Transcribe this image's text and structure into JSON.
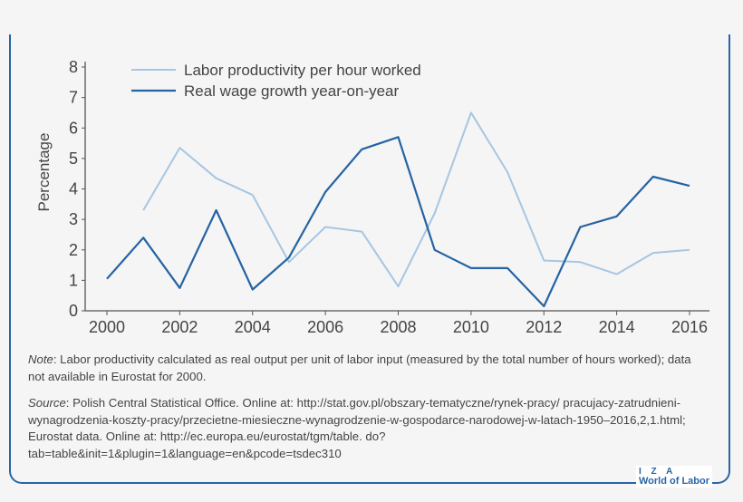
{
  "chart_data": {
    "type": "line",
    "title": "",
    "xlabel": "",
    "ylabel": "Percentage",
    "x": [
      2000,
      2001,
      2002,
      2003,
      2004,
      2005,
      2006,
      2007,
      2008,
      2009,
      2010,
      2011,
      2012,
      2013,
      2014,
      2015,
      2016
    ],
    "xticks": [
      "2000",
      "2002",
      "2004",
      "2006",
      "2008",
      "2010",
      "2012",
      "2014",
      "2016"
    ],
    "yticks": [
      "0",
      "1",
      "2",
      "3",
      "4",
      "5",
      "6",
      "7",
      "8"
    ],
    "xlim": [
      2000,
      2016
    ],
    "ylim": [
      0,
      8
    ],
    "grid": false,
    "legend": "top-left",
    "series": [
      {
        "name": "Labor productivity per hour worked",
        "color": "#a6c6e2",
        "values": [
          null,
          3.3,
          5.35,
          4.35,
          3.8,
          1.6,
          2.75,
          2.6,
          0.8,
          3.2,
          6.5,
          4.55,
          1.65,
          1.6,
          1.2,
          1.9,
          2.0
        ]
      },
      {
        "name": "Real wage growth year-on-year",
        "color": "#2563a3",
        "values": [
          1.05,
          2.4,
          0.75,
          3.3,
          0.7,
          1.75,
          3.9,
          5.3,
          5.7,
          2.0,
          1.4,
          1.4,
          0.15,
          2.75,
          3.1,
          4.4,
          4.1
        ]
      }
    ]
  },
  "note": {
    "label": "Note",
    "text": ": Labor productivity calculated as real output per unit of labor input (measured by the total number of hours worked); data not available in Eurostat for 2000."
  },
  "source": {
    "label": "Source",
    "text": ": Polish Central Statistical Office. Online at: http://stat.gov.pl/obszary-tematyczne/rynek-pracy/ pracujacy-zatrudnieni-wynagrodzenia-koszty-pracy/przecietne-miesieczne-wynagrodzenie-w-gospodarce-narodowej-w-latach-1950–2016,2,1.html; Eurostat data. Online at: http://ec.europa.eu/eurostat/tgm/table. do?tab=table&init=1&plugin=1&language=en&pcode=tsdec310"
  },
  "logo": {
    "line1": "I Z A",
    "line2": "World of Labor"
  },
  "frame_color": "#2a64a6"
}
